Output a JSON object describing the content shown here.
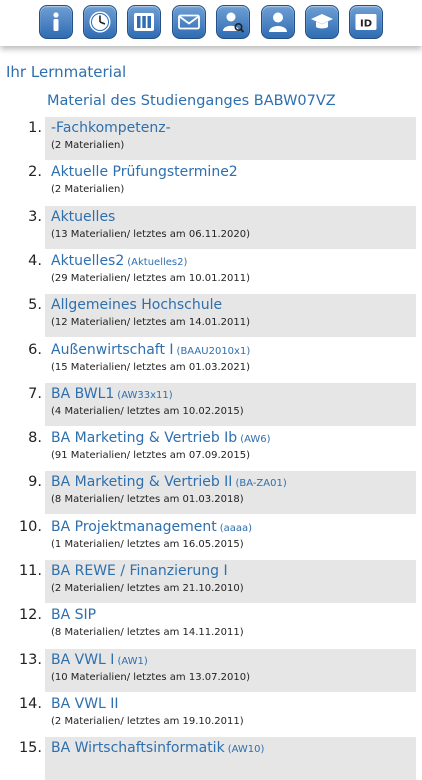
{
  "toolbar": {
    "icons": [
      "info-icon",
      "clock-icon",
      "timetable-icon",
      "mail-icon",
      "person-search-icon",
      "profile-icon",
      "graduation-cap-icon",
      "id-card-icon"
    ],
    "id_label": "ID"
  },
  "section_title": "Ihr Lernmaterial",
  "subtitle": "Material des Studienganges BABW07VZ",
  "items": [
    {
      "num": "1.",
      "title": "-Fachkompetenz-",
      "code": "",
      "meta": "(2 Materialien)"
    },
    {
      "num": "2.",
      "title": "Aktuelle Prüfungstermine2",
      "code": "",
      "meta": "(2 Materialien)"
    },
    {
      "num": "3.",
      "title": "Aktuelles",
      "code": "",
      "meta": "(13 Materialien/ letztes am 06.11.2020)"
    },
    {
      "num": "4.",
      "title": "Aktuelles2",
      "code": "(Aktuelles2)",
      "meta": "(29 Materialien/ letztes am 10.01.2011)"
    },
    {
      "num": "5.",
      "title": "Allgemeines Hochschule",
      "code": "",
      "meta": "(12 Materialien/ letztes am 14.01.2011)"
    },
    {
      "num": "6.",
      "title": "Außenwirtschaft I",
      "code": "(BAAU2010x1)",
      "meta": "(15 Materialien/ letztes am 01.03.2021)"
    },
    {
      "num": "7.",
      "title": "BA BWL1",
      "code": "(AW33x11)",
      "meta": "(4 Materialien/ letztes am 10.02.2015)"
    },
    {
      "num": "8.",
      "title": "BA Marketing & Vertrieb Ib",
      "code": "(AW6)",
      "meta": "(91 Materialien/ letztes am 07.09.2015)"
    },
    {
      "num": "9.",
      "title": "BA Marketing & Vertrieb II",
      "code": "(BA-ZA01)",
      "meta": "(8 Materialien/ letztes am 01.03.2018)"
    },
    {
      "num": "10.",
      "title": "BA Projektmanagement",
      "code": "(aaaa)",
      "meta": "(1 Materialien/ letztes am 16.05.2015)"
    },
    {
      "num": "11.",
      "title": "BA REWE / Finanzierung I",
      "code": "",
      "meta": "(2 Materialien/ letztes am 21.10.2010)"
    },
    {
      "num": "12.",
      "title": "BA SIP",
      "code": "",
      "meta": "(8 Materialien/ letztes am 14.11.2011)"
    },
    {
      "num": "13.",
      "title": "BA VWL I",
      "code": "(AW1)",
      "meta": "(10 Materialien/ letztes am 13.07.2010)"
    },
    {
      "num": "14.",
      "title": "BA VWL II",
      "code": "",
      "meta": "(2 Materialien/ letztes am 19.10.2011)"
    },
    {
      "num": "15.",
      "title": "BA Wirtschaftsinformatik",
      "code": "(AW10)",
      "meta": ""
    }
  ],
  "colors": {
    "accent": "#2e6fae",
    "row_shade": "#e6e6e6",
    "toolbar_button": "#3a78bf"
  }
}
